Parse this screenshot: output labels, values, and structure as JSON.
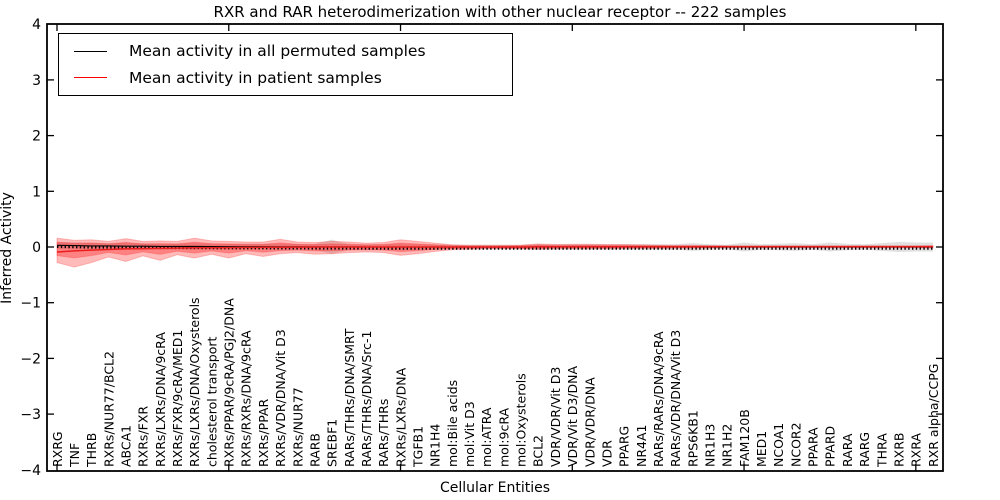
{
  "title": "RXR and RAR heterodimerization with other nuclear receptor -- 222 samples",
  "legend": {
    "items": [
      {
        "label": "Mean activity in all permuted samples",
        "color": "#000000"
      },
      {
        "label": "Mean activity in patient samples",
        "color": "#ff0000"
      }
    ]
  },
  "axes": {
    "ylabel": "Inferred Activity",
    "xlabel": "Cellular Entities",
    "yticks": [
      4,
      3,
      2,
      1,
      0,
      -1,
      -2,
      -3,
      -4
    ],
    "ylim": [
      -4,
      4
    ],
    "x_major_tick_indices": [
      0,
      10,
      20,
      30,
      40,
      50
    ]
  },
  "colors": {
    "patient_band": "#ff0000",
    "permuted_band": "#bbbbbb",
    "permuted_line": "#000000",
    "patient_line": "#e81e1e",
    "frame": "#000000"
  },
  "chart_data": {
    "type": "line",
    "title": "RXR and RAR heterodimerization with other nuclear receptor -- 222 samples",
    "xlabel": "Cellular Entities",
    "ylabel": "Inferred Activity",
    "ylim": [
      -4,
      4
    ],
    "grid": false,
    "legend_position": "upper left",
    "categories": [
      "RXRG",
      "TNF",
      "THRB",
      "RXRs/NUR77/BCL2",
      "ABCA1",
      "RXRs/FXR",
      "RXRs/LXRs/DNA/9cRA",
      "RXRs/FXR/9cRA/MED1",
      "RXRs/LXRs/DNA/Oxysterols",
      "cholesterol transport",
      "RXRs/PPAR/9cRA/PGJ2/DNA",
      "RXRs/RXRs/DNA/9cRA",
      "RXRs/PPAR",
      "RXRs/VDR/DNA/Vit D3",
      "RXRs/NUR77",
      "RARB",
      "SREBF1",
      "RARs/THRs/DNA/SMRT",
      "RARs/THRs/DNA/Src-1",
      "RARs/THRs",
      "RXRs/LXRs/DNA",
      "TGFB1",
      "NR1H4",
      "mol:Bile acids",
      "mol:Vit D3",
      "mol:ATRA",
      "mol:9cRA",
      "mol:Oxysterols",
      "BCL2",
      "VDR/VDR/Vit D3",
      "VDR/Vit D3/DNA",
      "VDR/VDR/DNA",
      "VDR",
      "PPARG",
      "NR4A1",
      "RARs/RARs/DNA/9cRA",
      "RARs/VDR/DNA/Vit D3",
      "RPS6KB1",
      "NR1H3",
      "NR1H2",
      "FAM120B",
      "MED1",
      "NCOA1",
      "NCOR2",
      "PPARA",
      "PPARD",
      "RARA",
      "RARG",
      "THRA",
      "RXRB",
      "RXRA",
      "RXR alpha/CCPG"
    ],
    "series": [
      {
        "name": "Mean activity in all permuted samples",
        "values": [
          0.03,
          0.025,
          0.02,
          0.02,
          0.015,
          0.015,
          0.01,
          0.01,
          0.01,
          0.008,
          0.005,
          0.005,
          0.005,
          0.004,
          0.003,
          0.002,
          0.002,
          0.001,
          0,
          0,
          0,
          0,
          0,
          0,
          0,
          0,
          0,
          0,
          0,
          0,
          0,
          0,
          0,
          0,
          0,
          0,
          0,
          0,
          0,
          0,
          0,
          0,
          0,
          0,
          0,
          0,
          0,
          0,
          0,
          0,
          0,
          0
        ]
      },
      {
        "name": "Mean activity in patient samples",
        "values": [
          -0.09,
          -0.07,
          -0.055,
          -0.045,
          -0.035,
          -0.03,
          -0.025,
          -0.02,
          -0.015,
          -0.012,
          -0.01,
          -0.008,
          -0.006,
          -0.004,
          -0.002,
          0,
          0,
          0,
          0,
          0,
          0,
          0,
          0,
          0,
          0,
          0,
          0,
          0,
          0.003,
          0.004,
          0.004,
          0.004,
          0.005,
          0.005,
          0.005,
          0.005,
          0.005,
          0.006,
          0.008,
          0.008,
          0.008,
          0.008,
          0.008,
          0.008,
          0.008,
          0.008,
          0.008,
          0.008,
          0.008,
          0.008,
          0.008,
          0.008
        ]
      }
    ],
    "patient_band_outer": {
      "upper": [
        0.16,
        0.12,
        0.13,
        0.1,
        0.15,
        0.1,
        0.11,
        0.1,
        0.16,
        0.11,
        0.1,
        0.09,
        0.09,
        0.14,
        0.09,
        0.08,
        0.1,
        0.09,
        0.07,
        0.08,
        0.13,
        0.1,
        0.07,
        0.04,
        0.03,
        0.03,
        0.03,
        0.035,
        0.055,
        0.045,
        0.05,
        0.05,
        0.045,
        0.045,
        0.04,
        0.035,
        0.03,
        0.03,
        0.025,
        0.02,
        0.02,
        0.02,
        0.02,
        0.02,
        0.02,
        0.02,
        0.02,
        0.02,
        0.02,
        0.02,
        0.02,
        0.025
      ],
      "lower": [
        -0.28,
        -0.36,
        -0.28,
        -0.18,
        -0.26,
        -0.16,
        -0.24,
        -0.14,
        -0.2,
        -0.13,
        -0.2,
        -0.12,
        -0.17,
        -0.12,
        -0.1,
        -0.13,
        -0.12,
        -0.1,
        -0.09,
        -0.1,
        -0.15,
        -0.12,
        -0.08,
        -0.05,
        -0.04,
        -0.03,
        -0.03,
        -0.035,
        -0.04,
        -0.03,
        -0.03,
        -0.03,
        -0.03,
        -0.025,
        -0.025,
        -0.025,
        -0.02,
        -0.02,
        -0.018,
        -0.015,
        -0.015,
        -0.015,
        -0.015,
        -0.015,
        -0.015,
        -0.015,
        -0.015,
        -0.015,
        -0.015,
        -0.015,
        -0.015,
        -0.02
      ]
    },
    "patient_band_inner_scale": 0.55,
    "permuted_band_halfwidth": [
      0.06,
      0.06,
      0.06,
      0.05,
      0.06,
      0.05,
      0.05,
      0.05,
      0.06,
      0.05,
      0.05,
      0.05,
      0.05,
      0.05,
      0.05,
      0.05,
      0.13,
      0.05,
      0.05,
      0.05,
      0.06,
      0.05,
      0.05,
      0.04,
      0.04,
      0.04,
      0.04,
      0.04,
      0.05,
      0.05,
      0.05,
      0.05,
      0.05,
      0.05,
      0.05,
      0.05,
      0.05,
      0.07,
      0.05,
      0.04,
      0.08,
      0.05,
      0.06,
      0.07,
      0.05,
      0.08,
      0.06,
      0.05,
      0.07,
      0.09,
      0.08,
      0.08
    ]
  }
}
